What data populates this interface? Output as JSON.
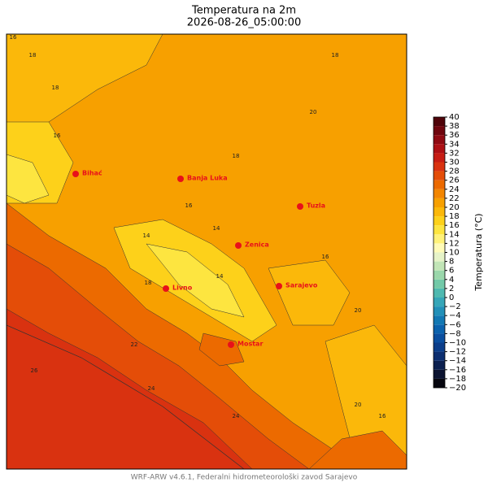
{
  "title": "Temperatura na 2m",
  "subtitle": "2026-08-26_05:00:00",
  "footer": "WRF-ARW v4.6.1, Federalni hidrometeorološki zavod Sarajevo",
  "cities": [
    {
      "name": "Bihać"
    },
    {
      "name": "Banja Luka"
    },
    {
      "name": "Tuzla"
    },
    {
      "name": "Zenica"
    },
    {
      "name": "Livno"
    },
    {
      "name": "Sarajevo"
    },
    {
      "name": "Mostar"
    }
  ],
  "contour_labels": [
    "16",
    "18",
    "18",
    "16",
    "20",
    "18",
    "16",
    "14",
    "14",
    "18",
    "20",
    "22",
    "24",
    "26",
    "20",
    "16",
    "18",
    "14",
    "16",
    "24"
  ],
  "colorbar": {
    "label": "Temperatura (°C)",
    "ticks": [
      {
        "value": -20,
        "label": "−20"
      },
      {
        "value": -18,
        "label": "−18"
      },
      {
        "value": -16,
        "label": "−16"
      },
      {
        "value": -14,
        "label": "−14"
      },
      {
        "value": -12,
        "label": "−12"
      },
      {
        "value": -10,
        "label": "−10"
      },
      {
        "value": -8,
        "label": "−8"
      },
      {
        "value": -6,
        "label": "−6"
      },
      {
        "value": -4,
        "label": "−4"
      },
      {
        "value": -2,
        "label": "−2"
      },
      0,
      2,
      4,
      6,
      8,
      10,
      12,
      14,
      16,
      18,
      20,
      22,
      24,
      26,
      28,
      30,
      32,
      34,
      36,
      38,
      40
    ],
    "colors": [
      "#06060f",
      "#0b1330",
      "#0c2050",
      "#0c2e70",
      "#0b3d8a",
      "#0a4e9f",
      "#0b62ad",
      "#1278b3",
      "#2290b8",
      "#36a6b8",
      "#4fb9b0",
      "#72c9a8",
      "#9ad7ab",
      "#c2e5b7",
      "#e6f3c8",
      "#fffbb8",
      "#fff27a",
      "#fde540",
      "#fdd11a",
      "#fbb80a",
      "#f7a000",
      "#f38600",
      "#ec6a00",
      "#e44d08",
      "#d93210",
      "#c71d14",
      "#ad1014",
      "#8f0a12",
      "#6f060e",
      "#4f040a"
    ]
  }
}
